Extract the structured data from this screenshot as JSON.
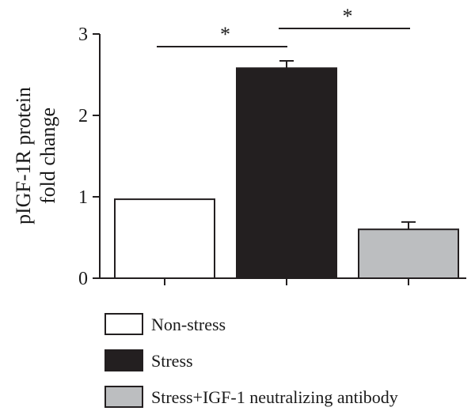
{
  "chart_data": {
    "type": "bar",
    "ylabel_lines": [
      "pIGF-1R protein",
      "fold change"
    ],
    "ylim": [
      0,
      3
    ],
    "yticks": [
      0,
      1,
      2,
      3
    ],
    "categories": [
      "Non-stress",
      "Stress",
      "Stress+IGF-1 neutralizing antibody"
    ],
    "values": [
      0.97,
      2.58,
      0.6
    ],
    "errors": [
      0,
      0.09,
      0.09
    ],
    "colors": [
      "#ffffff",
      "#231f20",
      "#bcbec0"
    ],
    "legend": {
      "placement": "bottom",
      "entries": [
        "Non-stress",
        "Stress",
        "Stress+IGF-1 neutralizing antibody"
      ]
    },
    "significance": [
      {
        "from": 0,
        "to": 1,
        "label": "*"
      },
      {
        "from": 1,
        "to": 2,
        "label": "*"
      }
    ]
  }
}
